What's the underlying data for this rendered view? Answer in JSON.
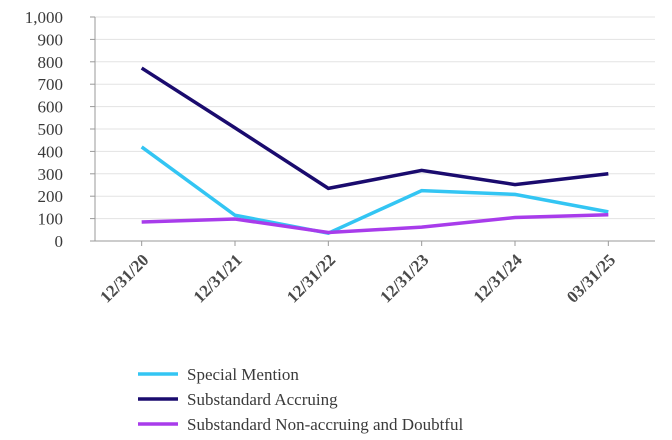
{
  "chart_data": {
    "type": "line",
    "title": "",
    "xlabel": "",
    "ylabel": "",
    "categories": [
      "12/31/20",
      "12/31/21",
      "12/31/22",
      "12/31/23",
      "12/31/24",
      "03/31/25"
    ],
    "y_tick_labels": [
      "0",
      "100",
      "200",
      "300",
      "400",
      "500",
      "600",
      "700",
      "800",
      "900",
      "1,000"
    ],
    "ylim": [
      0,
      1000
    ],
    "grid": "horizontal",
    "legend_position": "bottom-left",
    "series": [
      {
        "name": "Special Mention",
        "color": "#33C5F3",
        "values": [
          420,
          115,
          35,
          225,
          208,
          130
        ]
      },
      {
        "name": "Substandard Accruing",
        "color": "#1A0B6E",
        "values": [
          772,
          505,
          235,
          315,
          252,
          300
        ]
      },
      {
        "name": "Substandard Non-accruing and Doubtful",
        "color": "#A83CEB",
        "values": [
          85,
          98,
          38,
          62,
          105,
          117
        ]
      }
    ]
  }
}
